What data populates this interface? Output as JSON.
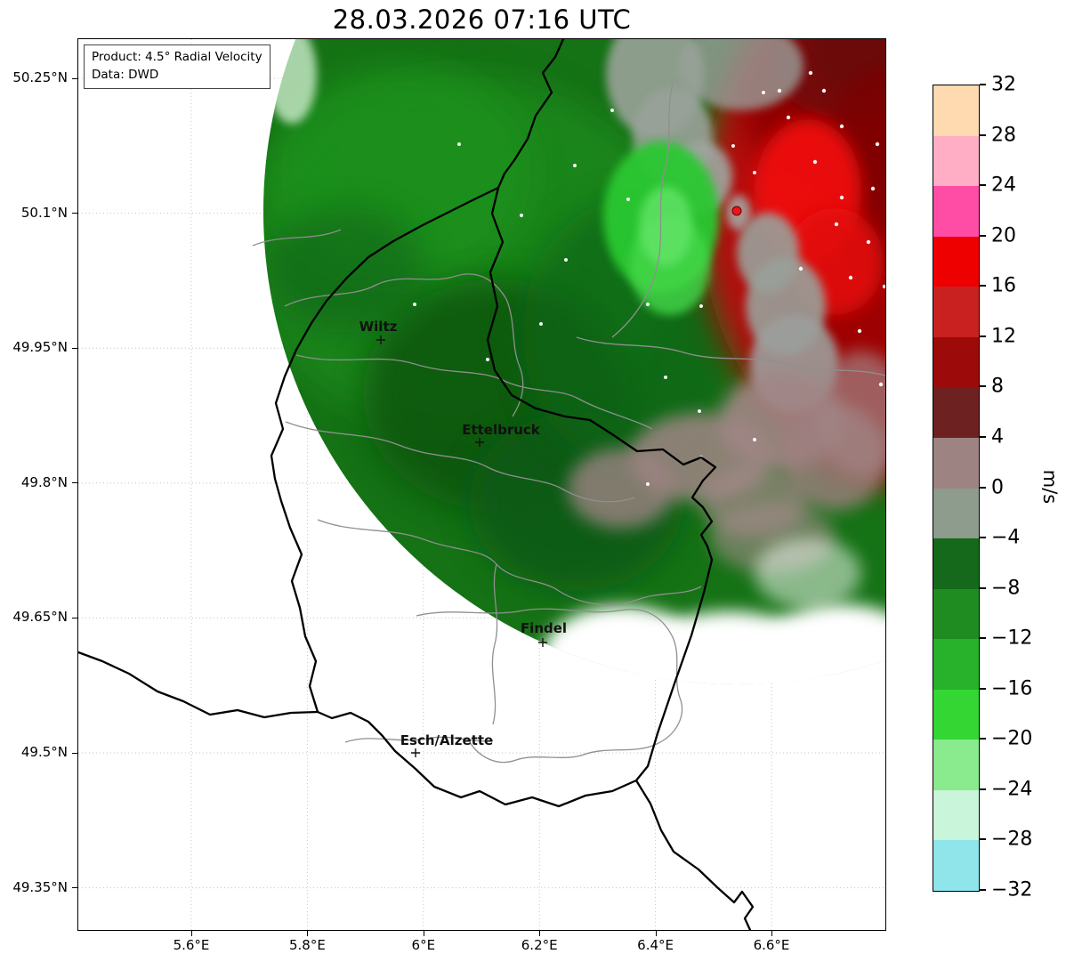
{
  "title": "28.03.2026 07:16 UTC",
  "info_box": {
    "line1": "Product: 4.5° Radial Velocity",
    "line2": "Data: DWD"
  },
  "axes": {
    "x_ticks": [
      "5.6°E",
      "5.8°E",
      "6°E",
      "6.2°E",
      "6.4°E",
      "6.6°E"
    ],
    "y_ticks": [
      "50.25°N",
      "50.1°N",
      "49.95°N",
      "49.8°N",
      "49.65°N",
      "49.5°N",
      "49.35°N"
    ]
  },
  "cities": [
    {
      "name": "Wiltz"
    },
    {
      "name": "Ettelbruck"
    },
    {
      "name": "Findel"
    },
    {
      "name": "Esch/Alzette"
    }
  ],
  "colorbar": {
    "unit": "m/s",
    "ticks": [
      "32",
      "28",
      "24",
      "20",
      "16",
      "12",
      "8",
      "4",
      "0",
      "−4",
      "−8",
      "−12",
      "−16",
      "−20",
      "−24",
      "−28",
      "−32"
    ],
    "segments": [
      "#ffd9b0",
      "#ffaec5",
      "#ff4da6",
      "#ef0000",
      "#c92020",
      "#9c0a0a",
      "#6e2121",
      "#9e8383",
      "#8d9c8d",
      "#14691a",
      "#1f8c22",
      "#28b12b",
      "#33d633",
      "#8aea8e",
      "#c9f5da",
      "#8fe5ea"
    ]
  },
  "chart_data": {
    "type": "heatmap",
    "title": "28.03.2026 07:16 UTC",
    "product": "4.5° Radial Velocity",
    "data_source": "DWD",
    "unit": "m/s",
    "x_axis": {
      "tick_labels": [
        "5.6°E",
        "5.8°E",
        "6°E",
        "6.2°E",
        "6.4°E",
        "6.6°E"
      ]
    },
    "y_axis": {
      "tick_labels": [
        "50.25°N",
        "50.1°N",
        "49.95°N",
        "49.8°N",
        "49.65°N",
        "49.5°N",
        "49.35°N"
      ]
    },
    "colorbar": {
      "min": -32,
      "max": 32,
      "step": 4,
      "unit": "m/s",
      "orientation": "vertical-right"
    },
    "radar_site": {
      "approx_lat": "50.1°N",
      "approx_lon": "6.55°E",
      "marker": "red dot"
    },
    "velocity_field": [
      {
        "region": "north and west of radar (northern Luxembourg / Belgium)",
        "sign": "negative (inbound)",
        "color": "green",
        "approx_values_mps": [
          -12,
          -4
        ]
      },
      {
        "region": "east and northeast of radar (Germany)",
        "sign": "positive (outbound)",
        "color": "red / dark red",
        "approx_values_mps": [
          4,
          20
        ]
      },
      {
        "region": "zero-isodop band through radar and along southeast data edge",
        "sign": "near zero",
        "color": "gray / gray-maroon",
        "approx_values_mps": [
          -2,
          4
        ]
      },
      {
        "region": "southern Luxembourg and far west",
        "sign": "no data",
        "color": "white",
        "approx_values_mps": null
      }
    ],
    "cities": [
      {
        "name": "Wiltz"
      },
      {
        "name": "Ettelbruck"
      },
      {
        "name": "Findel"
      },
      {
        "name": "Esch/Alzette"
      }
    ]
  }
}
